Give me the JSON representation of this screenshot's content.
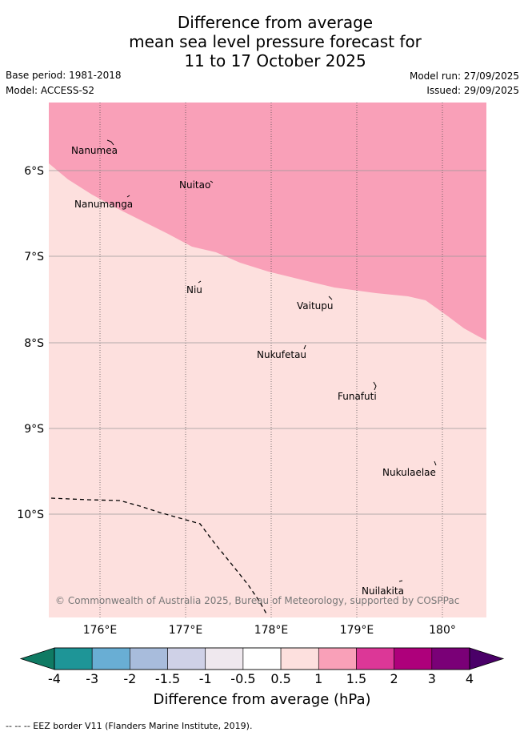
{
  "title": {
    "line1": "Difference from average",
    "line2": "mean sea level pressure forecast for",
    "line3": "11 to 17 October 2025"
  },
  "meta": {
    "base_period": "Base period: 1981-2018",
    "model": "Model: ACCESS-S2",
    "model_run": "Model run: 27/09/2025",
    "issued": "Issued: 29/09/2025"
  },
  "map": {
    "latitude_labels": [
      "6°S",
      "7°S",
      "8°S",
      "9°S",
      "10°S"
    ],
    "longitude_labels": [
      "176°E",
      "177°E",
      "178°E",
      "179°E",
      "180°"
    ],
    "places": [
      "Nanumea",
      "Nuitao",
      "Nanumanga",
      "Niu",
      "Vaitupu",
      "Nukufetau",
      "Funafuti",
      "Nukulaelae",
      "Nuilakita"
    ],
    "copyright": "© Commonwealth of Australia 2025, Bureau of Meteorology, supported by COSPPac",
    "colors": {
      "band_1_to_1_5": "#f9a0b8",
      "band_0_5_to_1": "#fde0de"
    }
  },
  "colorbar": {
    "title": "Difference from average (hPa)",
    "ticks": [
      "-4",
      "-3",
      "-2",
      "-1.5",
      "-1",
      "-0.5",
      "0.5",
      "1",
      "1.5",
      "2",
      "3",
      "4"
    ],
    "colors": [
      "#1e9597",
      "#69aed4",
      "#a8bcdc",
      "#cfd1e7",
      "#efe8ee",
      "#ffffff",
      "#fde0de",
      "#f9a0b8",
      "#dc3797",
      "#ae007b",
      "#7a0077"
    ],
    "under_color": "#0f7a63",
    "over_color": "#4a0068"
  },
  "footnote": "--  --  -- EEZ border V11 (Flanders Marine Institute, 2019)."
}
